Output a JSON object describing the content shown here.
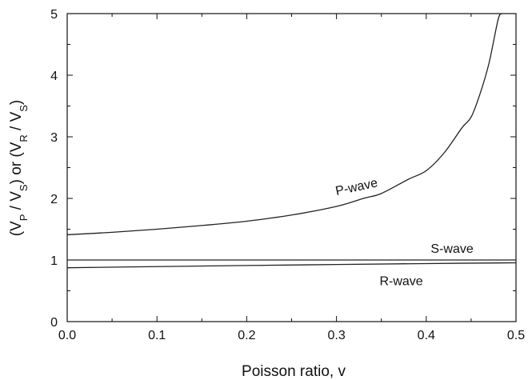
{
  "chart_data": {
    "type": "line",
    "title": "",
    "xlabel": "Poisson ratio, v",
    "ylabel": {
      "parts": [
        "(V",
        "P",
        " / V",
        "S",
        ")  or  (V",
        "R",
        " / V",
        "S",
        ")"
      ]
    },
    "xlim": [
      0.0,
      0.5
    ],
    "ylim": [
      0,
      5
    ],
    "xticks": [
      0.0,
      0.1,
      0.2,
      0.3,
      0.4,
      0.5
    ],
    "xtick_labels": [
      "0.0",
      "0.1",
      "0.2",
      "0.3",
      "0.4",
      "0.5"
    ],
    "yticks": [
      0,
      1,
      2,
      3,
      4,
      5
    ],
    "ytick_labels": [
      "0",
      "1",
      "2",
      "3",
      "4",
      "5"
    ],
    "grid": false,
    "series": [
      {
        "name": "P-wave",
        "x": [
          0.0,
          0.05,
          0.1,
          0.15,
          0.2,
          0.25,
          0.3,
          0.33,
          0.35,
          0.38,
          0.4,
          0.42,
          0.44,
          0.45,
          0.46,
          0.47,
          0.48,
          0.484
        ],
        "y": [
          1.41,
          1.45,
          1.5,
          1.56,
          1.63,
          1.73,
          1.87,
          2.0,
          2.08,
          2.31,
          2.45,
          2.74,
          3.15,
          3.32,
          3.7,
          4.2,
          4.9,
          5.0
        ]
      },
      {
        "name": "S-wave",
        "x": [
          0.0,
          0.5
        ],
        "y": [
          1.0,
          1.0
        ]
      },
      {
        "name": "R-wave",
        "x": [
          0.0,
          0.1,
          0.2,
          0.3,
          0.4,
          0.5
        ],
        "y": [
          0.874,
          0.893,
          0.911,
          0.927,
          0.942,
          0.955
        ]
      }
    ]
  }
}
